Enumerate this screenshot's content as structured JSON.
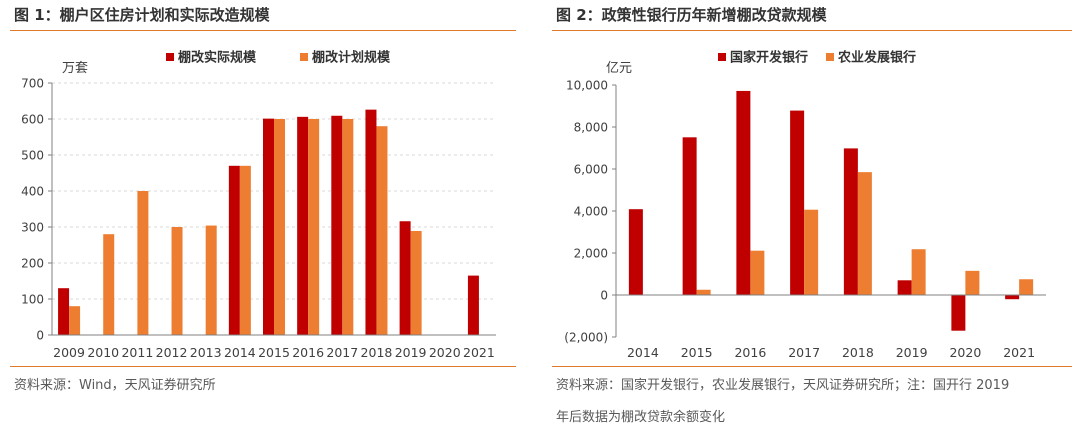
{
  "colors": {
    "red": "#c00000",
    "orange": "#ed7d31",
    "rule": "#e07b2e"
  },
  "chart_data": [
    {
      "type": "bar",
      "title": "图 1：棚户区住房计划和实际改造规模",
      "ylabel": "万套",
      "xlabel": "",
      "ylim": [
        0,
        700
      ],
      "yticks": [
        0,
        100,
        200,
        300,
        400,
        500,
        600,
        700
      ],
      "ytick_labels": [
        "0",
        "100",
        "200",
        "300",
        "400",
        "500",
        "600",
        "700"
      ],
      "grid": true,
      "legend_position": "top",
      "categories": [
        "2009",
        "2010",
        "2011",
        "2012",
        "2013",
        "2014",
        "2015",
        "2016",
        "2017",
        "2018",
        "2019",
        "2020",
        "2021"
      ],
      "series": [
        {
          "name": "棚改实际规模",
          "color": "#c00000",
          "values": [
            130,
            null,
            null,
            null,
            null,
            470,
            601,
            606,
            609,
            626,
            316,
            null,
            165
          ]
        },
        {
          "name": "棚改计划规模",
          "color": "#ed7d31",
          "values": [
            80,
            280,
            400,
            300,
            304,
            470,
            600,
            600,
            600,
            580,
            289,
            null,
            null
          ]
        }
      ],
      "source": "资料来源：Wind，天风证券研究所"
    },
    {
      "type": "bar",
      "title": "图 2：政策性银行历年新增棚改贷款规模",
      "ylabel": "亿元",
      "xlabel": "",
      "ylim": [
        -2000,
        10000
      ],
      "yticks": [
        -2000,
        0,
        2000,
        4000,
        6000,
        8000,
        10000
      ],
      "ytick_labels": [
        "(2,000)",
        "0",
        "2,000",
        "4,000",
        "6,000",
        "8,000",
        "10,000"
      ],
      "grid": false,
      "legend_position": "top",
      "categories": [
        "2014",
        "2015",
        "2016",
        "2017",
        "2018",
        "2019",
        "2020",
        "2021"
      ],
      "series": [
        {
          "name": "国家开发银行",
          "color": "#c00000",
          "values": [
            4086,
            7509,
            9717,
            8782,
            6981,
            700,
            -1700,
            -200
          ]
        },
        {
          "name": "农业发展银行",
          "color": "#ed7d31",
          "values": [
            null,
            250,
            2110,
            4062,
            5850,
            2180,
            1150,
            750
          ]
        }
      ],
      "source_line1": "资料来源：国家开发银行，农业发展银行，天风证券研究所；注：国开行 2019",
      "source_line2": "年后数据为棚改贷款余额变化"
    }
  ]
}
